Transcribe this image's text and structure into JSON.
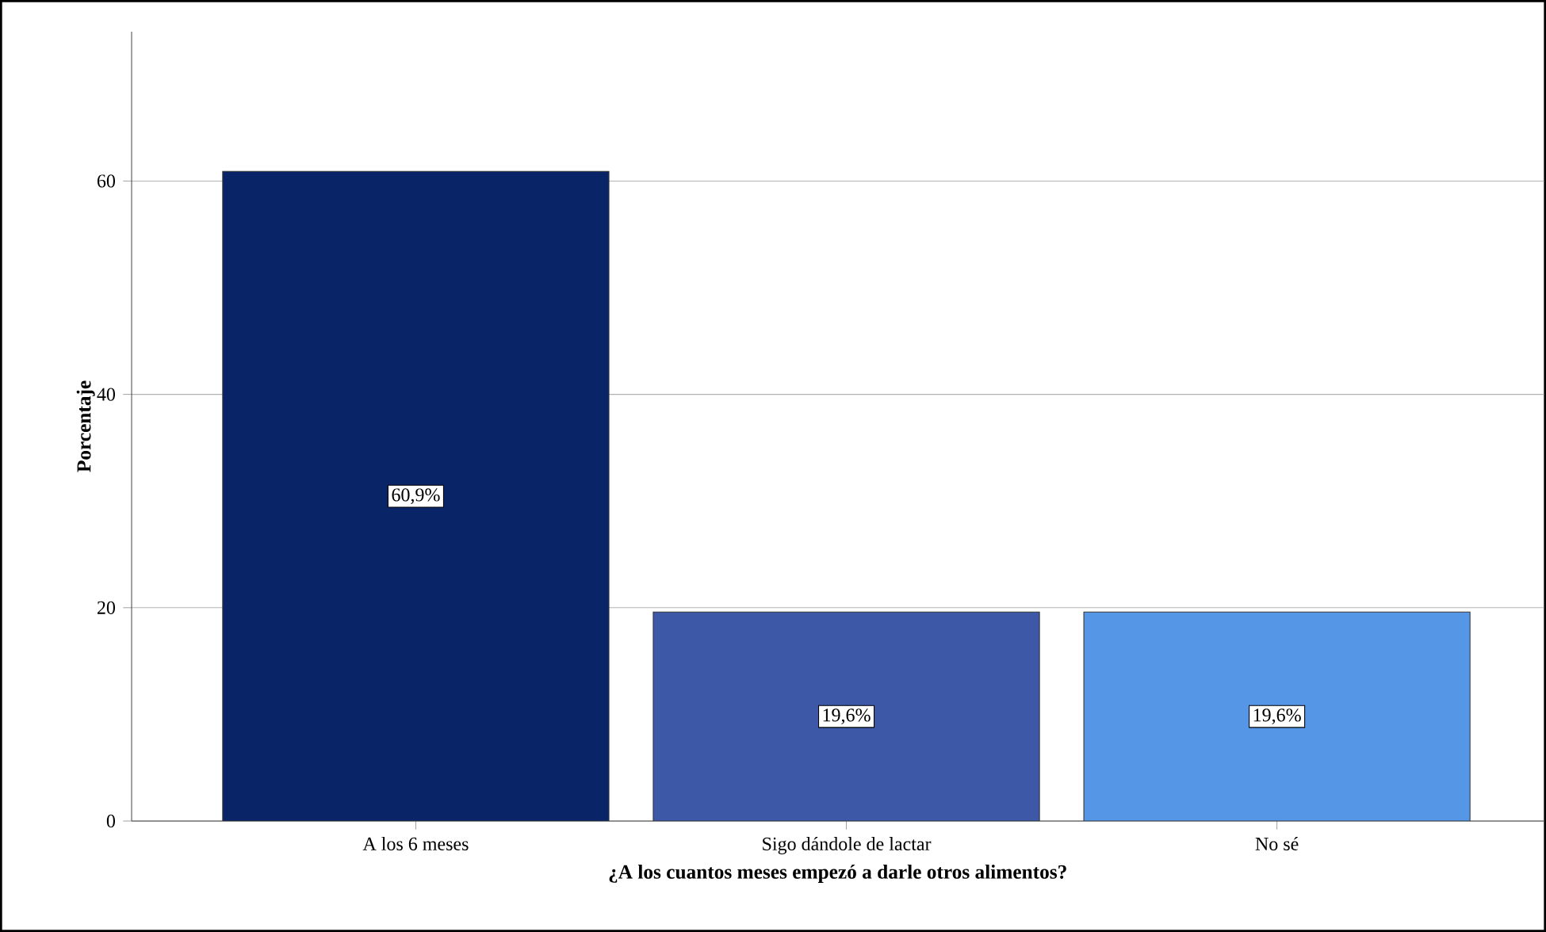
{
  "chart_data": {
    "type": "bar",
    "xlabel": "¿A los cuantos meses empezó a darle otros alimentos?",
    "ylabel": "Porcentaje",
    "categories": [
      "A los 6 meses",
      "Sigo dándole de lactar",
      "No sé"
    ],
    "values": [
      60.9,
      19.6,
      19.6
    ],
    "colors": [
      "#0a2468",
      "#3d58a6",
      "#5596e6"
    ],
    "value_labels": [
      "60,9%",
      "19,6%",
      "19,6%"
    ],
    "ylim": [
      0,
      74
    ],
    "yticks": [
      0,
      20,
      40,
      60
    ],
    "grid": "y"
  }
}
